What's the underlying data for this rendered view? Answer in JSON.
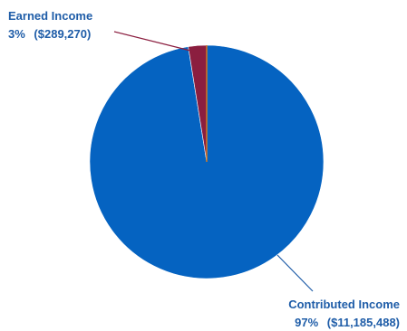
{
  "chart_data": {
    "type": "pie",
    "slices": [
      {
        "name": "Contributed Income",
        "percent_label": "97%",
        "amount_label": "($11,185,488)",
        "value": 11185488,
        "color": "#0563c1"
      },
      {
        "name": "Earned Income",
        "percent_label": "3%",
        "amount_label": "($289,270)",
        "value": 289270,
        "color": "#8b1e3f"
      }
    ],
    "thin_slice_color": "#e07b1a",
    "leader_colors": {
      "contributed": "#1f5da8",
      "earned": "#8b1e3f"
    },
    "label_color": "#1f5da8"
  }
}
